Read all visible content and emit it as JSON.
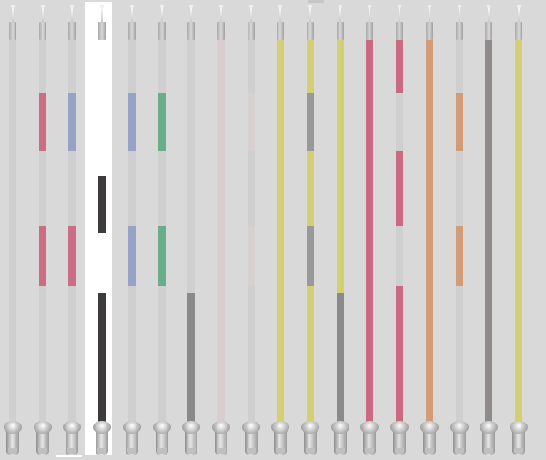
{
  "strand_count": 18,
  "colors": {
    "gray": "#cfcfcf",
    "pink": "#cc6d86",
    "blue": "#96a3c6",
    "black": "#3d3b3b",
    "white": "#ffffff",
    "green": "#6aae89",
    "dark": "#8a8a8a",
    "lightpink": "#d9cdd0",
    "faint": "#d8cfd1",
    "yellow": "#d5cf74",
    "midgray": "#999999",
    "crimson": "#c96982",
    "orange": "#d49b79",
    "slate": "#8f8b8b"
  },
  "strands": [
    {
      "id": 1,
      "selected": false,
      "segments": []
    },
    {
      "id": 2,
      "selected": false,
      "segments": [
        {
          "from": 102,
          "to": 166,
          "color": "pink"
        },
        {
          "from": 248,
          "to": 314,
          "color": "pink"
        }
      ]
    },
    {
      "id": 3,
      "selected": false,
      "segments": [
        {
          "from": 102,
          "to": 166,
          "color": "blue"
        },
        {
          "from": 248,
          "to": 314,
          "color": "pink"
        }
      ]
    },
    {
      "id": 4,
      "selected": true,
      "segments": [
        {
          "from": 44,
          "to": 193,
          "color": "white"
        },
        {
          "from": 193,
          "to": 256,
          "color": "black"
        },
        {
          "from": 256,
          "to": 322,
          "color": "white"
        },
        {
          "from": 322,
          "to": 468,
          "color": "black"
        }
      ]
    },
    {
      "id": 5,
      "selected": false,
      "segments": [
        {
          "from": 102,
          "to": 166,
          "color": "blue"
        },
        {
          "from": 248,
          "to": 314,
          "color": "blue"
        }
      ]
    },
    {
      "id": 6,
      "selected": false,
      "segments": [
        {
          "from": 102,
          "to": 166,
          "color": "green"
        },
        {
          "from": 248,
          "to": 314,
          "color": "green"
        }
      ]
    },
    {
      "id": 7,
      "selected": false,
      "segments": [
        {
          "from": 322,
          "to": 468,
          "color": "dark"
        }
      ]
    },
    {
      "id": 8,
      "selected": false,
      "segments": [
        {
          "from": 44,
          "to": 468,
          "color": "lightpink"
        }
      ]
    },
    {
      "id": 9,
      "selected": false,
      "segments": [
        {
          "from": 102,
          "to": 166,
          "color": "faint"
        },
        {
          "from": 248,
          "to": 314,
          "color": "faint"
        }
      ]
    },
    {
      "id": 10,
      "selected": false,
      "segments": [
        {
          "from": 44,
          "to": 468,
          "color": "yellow"
        }
      ]
    },
    {
      "id": 11,
      "selected": false,
      "segments": [
        {
          "from": 44,
          "to": 102,
          "color": "yellow"
        },
        {
          "from": 102,
          "to": 166,
          "color": "midgray"
        },
        {
          "from": 166,
          "to": 248,
          "color": "yellow"
        },
        {
          "from": 248,
          "to": 314,
          "color": "midgray"
        },
        {
          "from": 314,
          "to": 468,
          "color": "yellow"
        }
      ]
    },
    {
      "id": 12,
      "selected": false,
      "segments": [
        {
          "from": 44,
          "to": 322,
          "color": "yellow"
        },
        {
          "from": 322,
          "to": 468,
          "color": "dark"
        }
      ]
    },
    {
      "id": 13,
      "selected": false,
      "segments": [
        {
          "from": 44,
          "to": 468,
          "color": "crimson"
        }
      ]
    },
    {
      "id": 14,
      "selected": false,
      "segments": [
        {
          "from": 44,
          "to": 102,
          "color": "crimson"
        },
        {
          "from": 166,
          "to": 248,
          "color": "crimson"
        },
        {
          "from": 314,
          "to": 468,
          "color": "crimson"
        }
      ]
    },
    {
      "id": 15,
      "selected": false,
      "segments": [
        {
          "from": 44,
          "to": 468,
          "color": "orange"
        }
      ]
    },
    {
      "id": 16,
      "selected": false,
      "segments": [
        {
          "from": 102,
          "to": 166,
          "color": "orange"
        },
        {
          "from": 248,
          "to": 314,
          "color": "orange"
        }
      ]
    },
    {
      "id": 17,
      "selected": false,
      "segments": [
        {
          "from": 44,
          "to": 468,
          "color": "slate"
        }
      ]
    },
    {
      "id": 18,
      "selected": false,
      "segments": [
        {
          "from": 44,
          "to": 468,
          "color": "yellow"
        }
      ]
    }
  ]
}
